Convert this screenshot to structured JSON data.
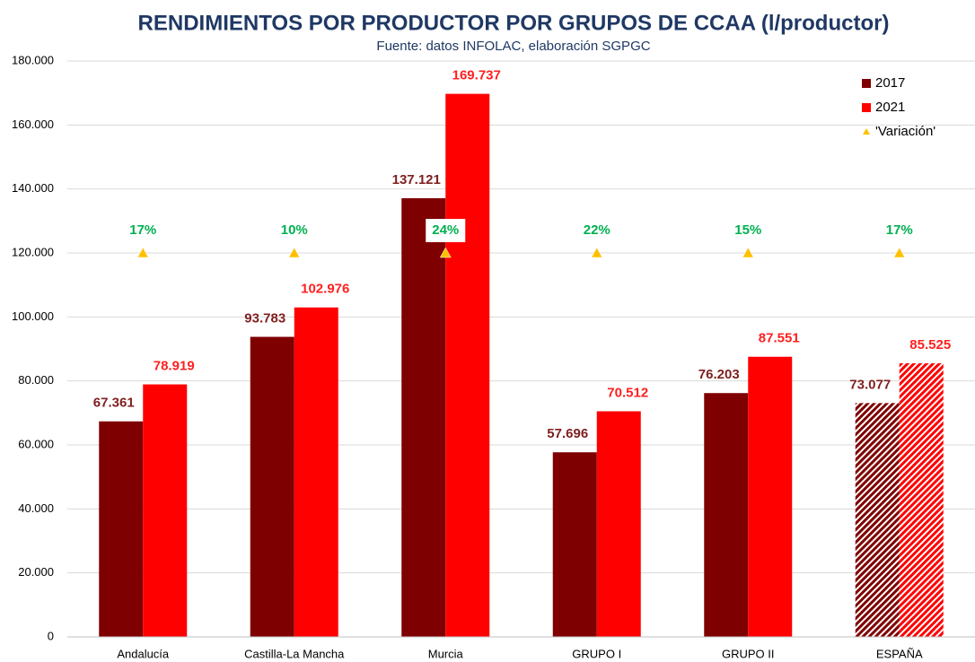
{
  "chart_data": {
    "type": "bar",
    "title": "RENDIMIENTOS POR PRODUCTOR POR GRUPOS DE CCAA (l/productor)",
    "subtitle": "Fuente: datos INFOLAC, elaboración SGPGC",
    "categories": [
      "Andalucía",
      "Castilla-La Mancha",
      "Murcia",
      "GRUPO I",
      "GRUPO II",
      "ESPAÑA"
    ],
    "series": [
      {
        "name": "2017",
        "color": "#7f0000",
        "label_color": "#7f1f1f",
        "values": [
          67361,
          93783,
          137121,
          57696,
          76203,
          73077
        ],
        "value_labels": [
          "67.361",
          "93.783",
          "137.121",
          "57.696",
          "76.203",
          "73.077"
        ],
        "hatched": [
          false,
          false,
          false,
          false,
          false,
          true
        ]
      },
      {
        "name": "2021",
        "color": "#ff0000",
        "label_color": "#ff2020",
        "values": [
          78919,
          102976,
          169737,
          70512,
          87551,
          85525
        ],
        "value_labels": [
          "78.919",
          "102.976",
          "169.737",
          "70.512",
          "87.551",
          "85.525"
        ],
        "hatched": [
          false,
          false,
          false,
          false,
          false,
          true
        ]
      }
    ],
    "variation": {
      "name": "'Variación'",
      "color": "#ffc000",
      "label_color": "#00b050",
      "y": 120000,
      "values": [
        17,
        10,
        24,
        22,
        15,
        17
      ],
      "value_labels": [
        "17%",
        "10%",
        "24%",
        "22%",
        "15%",
        "17%"
      ]
    },
    "ylim": [
      0,
      180000
    ],
    "yticks": [
      {
        "value": 0,
        "label": "0"
      },
      {
        "value": 20000,
        "label": "20.000"
      },
      {
        "value": 40000,
        "label": "40.000"
      },
      {
        "value": 60000,
        "label": "60.000"
      },
      {
        "value": 80000,
        "label": "80.000"
      },
      {
        "value": 100000,
        "label": "100.000"
      },
      {
        "value": 120000,
        "label": "120.000"
      },
      {
        "value": 140000,
        "label": "140.000"
      },
      {
        "value": 160000,
        "label": "160.000"
      },
      {
        "value": 180000,
        "label": "180.000"
      }
    ],
    "grid": true,
    "legend": "top-right"
  }
}
